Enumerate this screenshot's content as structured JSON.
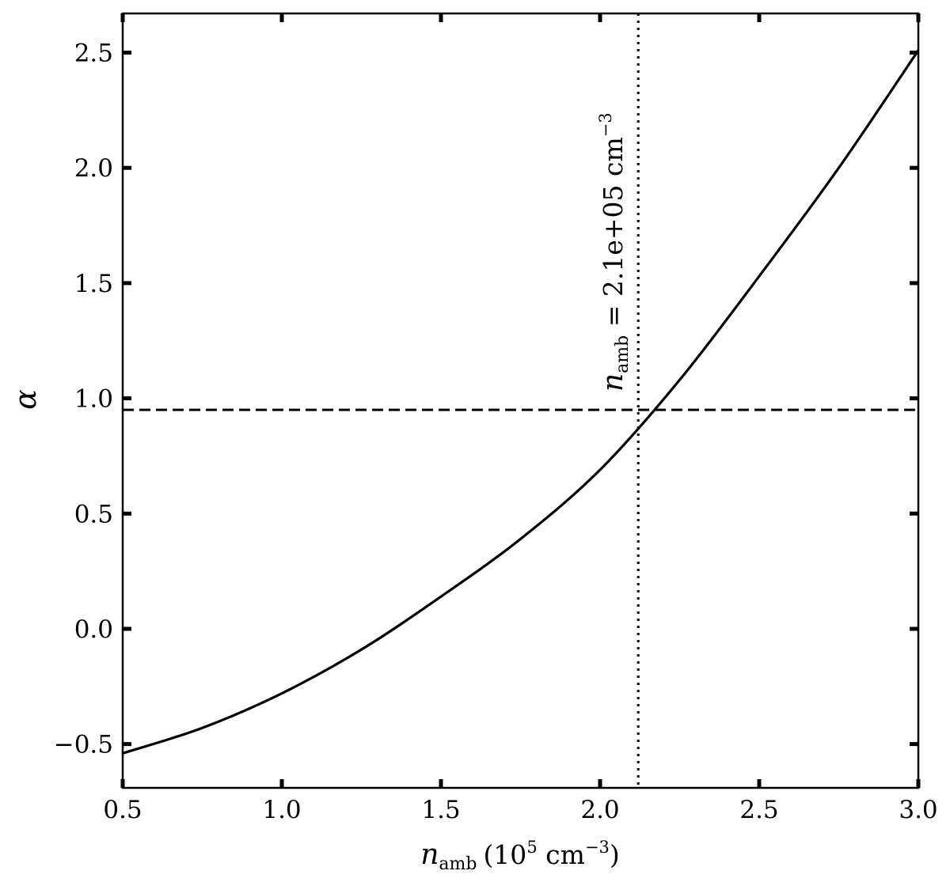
{
  "chart_data": {
    "type": "line",
    "xlabel": {
      "symbol": "n",
      "subscript": "amb",
      "units_prefix": "(10",
      "units_exp": "5",
      "units_mid": " cm",
      "units_exp2": "−3",
      "units_suffix": ")"
    },
    "ylabel": "α",
    "xlim": [
      0.5,
      3.0
    ],
    "ylim": [
      -0.69,
      2.67
    ],
    "x_ticks": [
      0.5,
      1.0,
      1.5,
      2.0,
      2.5,
      3.0
    ],
    "x_tick_labels": [
      "0.5",
      "1.0",
      "1.5",
      "2.0",
      "2.5",
      "3.0"
    ],
    "y_ticks": [
      -0.5,
      0.0,
      0.5,
      1.0,
      1.5,
      2.0,
      2.5
    ],
    "y_tick_labels": [
      "−0.5",
      "0.0",
      "0.5",
      "1.0",
      "1.5",
      "2.0",
      "2.5"
    ],
    "grid": false,
    "series": [
      {
        "style": "solid",
        "color": "#000000",
        "x": [
          0.5,
          0.75,
          1.0,
          1.25,
          1.5,
          1.75,
          2.0,
          2.25,
          2.5,
          2.75,
          3.0
        ],
        "y": [
          -0.54,
          -0.43,
          -0.28,
          -0.09,
          0.14,
          0.39,
          0.69,
          1.08,
          1.53,
          2.0,
          2.51
        ]
      }
    ],
    "reference_lines": [
      {
        "orientation": "horizontal",
        "value": 0.95,
        "style": "dashed"
      },
      {
        "orientation": "vertical",
        "value": 2.12,
        "style": "dotted"
      }
    ],
    "annotation": {
      "symbol": "n",
      "subscript": "amb",
      "text": " = 2.1e+05 cm",
      "superscript": "−3",
      "x": 2.12
    }
  }
}
